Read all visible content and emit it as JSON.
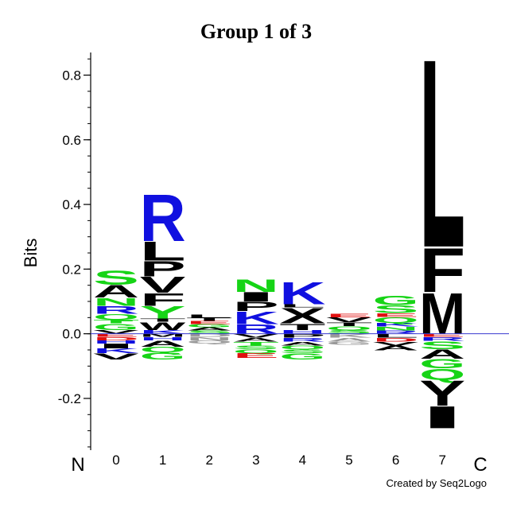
{
  "chart_data": {
    "type": "sequence-logo",
    "title": "Group 1 of 3",
    "ylabel": "Bits",
    "ylim": [
      -0.36,
      0.87
    ],
    "yticks": [
      {
        "value": -0.2,
        "label": "-0.2"
      },
      {
        "value": 0.0,
        "label": "0.0"
      },
      {
        "value": 0.2,
        "label": "0.2"
      },
      {
        "value": 0.4,
        "label": "0.4"
      },
      {
        "value": 0.6,
        "label": "0.6"
      },
      {
        "value": 0.8,
        "label": "0.8"
      }
    ],
    "n_terminus_label": "N",
    "c_terminus_label": "C",
    "credit": "Created by Seq2Logo",
    "colors": {
      "green": "#16d416",
      "blue": "#1010e0",
      "black": "#000000",
      "red": "#e01010",
      "pink": "#e8a0b0",
      "gray": "#999999",
      "baseline": "#3a3ad0"
    },
    "positions": [
      {
        "label": "0",
        "positive": [
          {
            "letter": "V",
            "bits": 0.012,
            "color": "black"
          },
          {
            "letter": "G",
            "bits": 0.02,
            "color": "green"
          },
          {
            "letter": "T",
            "bits": 0.012,
            "color": "green"
          },
          {
            "letter": "Q",
            "bits": 0.018,
            "color": "green"
          },
          {
            "letter": "R",
            "bits": 0.025,
            "color": "blue"
          },
          {
            "letter": "N",
            "bits": 0.025,
            "color": "green"
          },
          {
            "letter": "A",
            "bits": 0.04,
            "color": "black"
          },
          {
            "letter": "S",
            "bits": 0.045,
            "color": "green"
          }
        ],
        "negative": [
          {
            "letter": "E",
            "bits": 0.01,
            "color": "red"
          },
          {
            "letter": "D",
            "bits": 0.01,
            "color": "red"
          },
          {
            "letter": "H",
            "bits": 0.01,
            "color": "blue"
          },
          {
            "letter": "I",
            "bits": 0.015,
            "color": "black"
          },
          {
            "letter": "K",
            "bits": 0.015,
            "color": "blue"
          },
          {
            "letter": "V",
            "bits": 0.02,
            "color": "black"
          }
        ]
      },
      {
        "label": "1",
        "positive": [
          {
            "letter": "K",
            "bits": 0.012,
            "color": "blue"
          },
          {
            "letter": "W",
            "bits": 0.025,
            "color": "black"
          },
          {
            "letter": "T",
            "bits": 0.01,
            "color": "black"
          },
          {
            "letter": "Y",
            "bits": 0.04,
            "color": "green"
          },
          {
            "letter": "F",
            "bits": 0.04,
            "color": "black"
          },
          {
            "letter": "V",
            "bits": 0.05,
            "color": "black"
          },
          {
            "letter": "P",
            "bits": 0.05,
            "color": "black"
          },
          {
            "letter": "L",
            "bits": 0.06,
            "color": "black"
          },
          {
            "letter": "R",
            "bits": 0.15,
            "color": "blue"
          }
        ],
        "negative": [
          {
            "letter": "M",
            "bits": 0.01,
            "color": "black"
          },
          {
            "letter": "H",
            "bits": 0.01,
            "color": "blue"
          },
          {
            "letter": "A",
            "bits": 0.02,
            "color": "black"
          },
          {
            "letter": "Q",
            "bits": 0.018,
            "color": "green"
          },
          {
            "letter": "G",
            "bits": 0.022,
            "color": "green"
          }
        ]
      },
      {
        "label": "2",
        "positive": [
          {
            "letter": "S",
            "bits": 0.01,
            "color": "green"
          },
          {
            "letter": "A",
            "bits": 0.01,
            "color": "black"
          },
          {
            "letter": "G",
            "bits": 0.01,
            "color": "green"
          },
          {
            "letter": "E",
            "bits": 0.01,
            "color": "red"
          },
          {
            "letter": "T",
            "bits": 0.01,
            "color": "black"
          },
          {
            "letter": "L",
            "bits": 0.01,
            "color": "black"
          }
        ],
        "negative": [
          {
            "letter": "D",
            "bits": 0.01,
            "color": "gray"
          },
          {
            "letter": "N",
            "bits": 0.01,
            "color": "gray"
          },
          {
            "letter": "Q",
            "bits": 0.01,
            "color": "gray"
          }
        ]
      },
      {
        "label": "3",
        "positive": [
          {
            "letter": "R",
            "bits": 0.03,
            "color": "blue"
          },
          {
            "letter": "K",
            "bits": 0.04,
            "color": "blue"
          },
          {
            "letter": "P",
            "bits": 0.03,
            "color": "black"
          },
          {
            "letter": "I",
            "bits": 0.03,
            "color": "black"
          },
          {
            "letter": "N",
            "bits": 0.04,
            "color": "green"
          }
        ],
        "negative": [
          {
            "letter": "V",
            "bits": 0.012,
            "color": "black"
          },
          {
            "letter": "A",
            "bits": 0.012,
            "color": "black"
          },
          {
            "letter": "T",
            "bits": 0.012,
            "color": "green"
          },
          {
            "letter": "S",
            "bits": 0.012,
            "color": "green"
          },
          {
            "letter": "Q",
            "bits": 0.012,
            "color": "green"
          },
          {
            "letter": "E",
            "bits": 0.015,
            "color": "red"
          }
        ]
      },
      {
        "label": "4",
        "positive": [
          {
            "letter": "H",
            "bits": 0.012,
            "color": "blue"
          },
          {
            "letter": "T",
            "bits": 0.02,
            "color": "black"
          },
          {
            "letter": "X",
            "bits": 0.05,
            "color": "black"
          },
          {
            "letter": "L",
            "bits": 0.01,
            "color": "black"
          },
          {
            "letter": "K",
            "bits": 0.07,
            "color": "blue"
          }
        ],
        "negative": [
          {
            "letter": "P",
            "bits": 0.012,
            "color": "black"
          },
          {
            "letter": "R",
            "bits": 0.012,
            "color": "blue"
          },
          {
            "letter": "A",
            "bits": 0.012,
            "color": "black"
          },
          {
            "letter": "Q",
            "bits": 0.012,
            "color": "green"
          },
          {
            "letter": "S",
            "bits": 0.012,
            "color": "green"
          },
          {
            "letter": "G",
            "bits": 0.02,
            "color": "green"
          }
        ]
      },
      {
        "label": "5",
        "positive": [
          {
            "letter": "S",
            "bits": 0.012,
            "color": "green"
          },
          {
            "letter": "Q",
            "bits": 0.012,
            "color": "green"
          },
          {
            "letter": "T",
            "bits": 0.012,
            "color": "black"
          },
          {
            "letter": "V",
            "bits": 0.015,
            "color": "black"
          },
          {
            "letter": "E",
            "bits": 0.012,
            "color": "red"
          }
        ],
        "negative": [
          {
            "letter": "K",
            "bits": 0.012,
            "color": "gray"
          },
          {
            "letter": "A",
            "bits": 0.012,
            "color": "gray"
          },
          {
            "letter": "G",
            "bits": 0.01,
            "color": "gray"
          }
        ]
      },
      {
        "label": "6",
        "positive": [
          {
            "letter": "R",
            "bits": 0.01,
            "color": "blue"
          },
          {
            "letter": "N",
            "bits": 0.012,
            "color": "green"
          },
          {
            "letter": "K",
            "bits": 0.012,
            "color": "blue"
          },
          {
            "letter": "Q",
            "bits": 0.018,
            "color": "green"
          },
          {
            "letter": "E",
            "bits": 0.012,
            "color": "red"
          },
          {
            "letter": "S",
            "bits": 0.025,
            "color": "green"
          },
          {
            "letter": "G",
            "bits": 0.03,
            "color": "green"
          }
        ],
        "negative": [
          {
            "letter": "L",
            "bits": 0.012,
            "color": "black"
          },
          {
            "letter": "D",
            "bits": 0.012,
            "color": "red"
          },
          {
            "letter": "V",
            "bits": 0.012,
            "color": "black"
          },
          {
            "letter": "A",
            "bits": 0.015,
            "color": "black"
          }
        ]
      },
      {
        "label": "7",
        "positive": [
          {
            "letter": "M",
            "bits": 0.13,
            "color": "black"
          },
          {
            "letter": "F",
            "bits": 0.14,
            "color": "black"
          },
          {
            "letter": "L",
            "bits": 0.6,
            "color": "black"
          }
        ],
        "negative": [
          {
            "letter": "E",
            "bits": 0.01,
            "color": "red"
          },
          {
            "letter": "R",
            "bits": 0.012,
            "color": "blue"
          },
          {
            "letter": "S",
            "bits": 0.025,
            "color": "green"
          },
          {
            "letter": "A",
            "bits": 0.03,
            "color": "black"
          },
          {
            "letter": "G",
            "bits": 0.03,
            "color": "green"
          },
          {
            "letter": "Q",
            "bits": 0.035,
            "color": "green"
          },
          {
            "letter": "Y",
            "bits": 0.08,
            "color": "black"
          },
          {
            "letter": "I",
            "bits": 0.07,
            "color": "black"
          }
        ]
      }
    ]
  }
}
